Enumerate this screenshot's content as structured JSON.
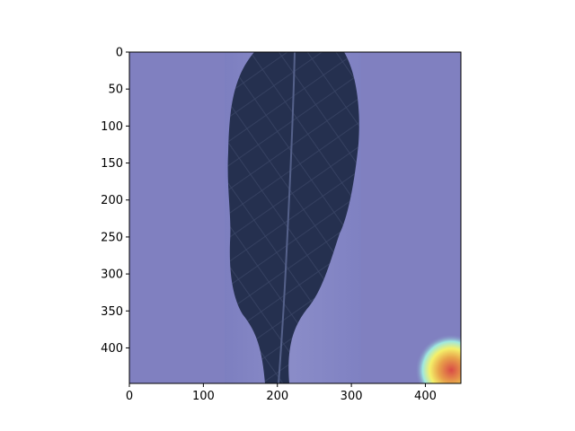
{
  "chart_data": {
    "type": "heatmap",
    "title": "",
    "xlabel": "",
    "ylabel": "",
    "xlim": [
      0,
      448
    ],
    "ylim": [
      448,
      0
    ],
    "x_ticks": [
      0,
      100,
      200,
      300,
      400
    ],
    "y_ticks": [
      0,
      50,
      100,
      150,
      200,
      250,
      300,
      350,
      400
    ],
    "x_tick_labels": [
      "0",
      "100",
      "200",
      "300",
      "400"
    ],
    "y_tick_labels": [
      "0",
      "50",
      "100",
      "150",
      "200",
      "250",
      "300",
      "350",
      "400"
    ],
    "grid": false,
    "image_content": "leaf photograph with attention heatmap overlay",
    "overlay_colormap": "jet",
    "overlay_base_color": "#8080c0",
    "hotspot": {
      "x": 435,
      "y": 430,
      "peak_color": "#e0504a"
    }
  }
}
